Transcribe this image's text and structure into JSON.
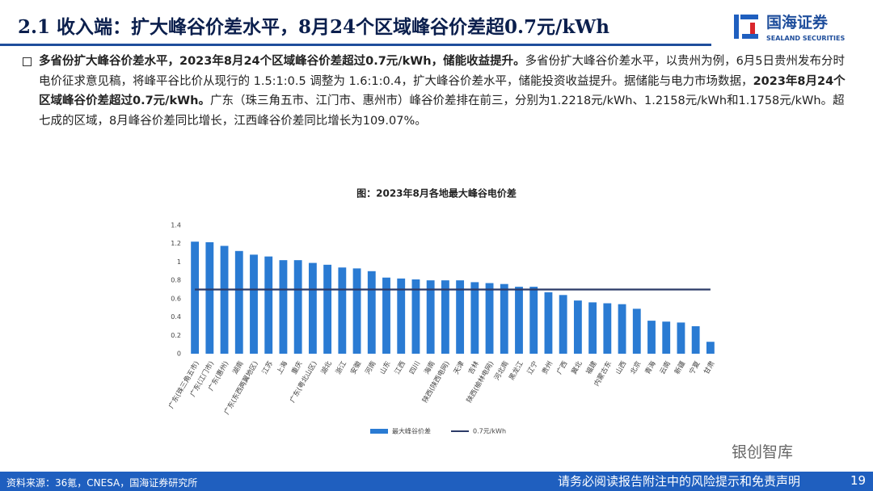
{
  "header": {
    "title": "2.1 收入端：扩大峰谷价差水平，8月24个区域峰谷价差超0.7元/kWh",
    "logo_text": "国海证券",
    "logo_subtext": "SEALAND SECURITIES"
  },
  "paragraph": {
    "segments": [
      {
        "text": "多省份扩大峰谷价差水平，2023年8月24个区域峰谷价差超过0.7元/kWh，储能收益提升。",
        "bold": true
      },
      {
        "text": "多省份扩大峰谷价差水平，以贵州为例，6月5日贵州发布分时电价征求意见稿，将峰平谷比价从现行的 1.5:1:0.5 调整为 1.6:1:0.4，扩大峰谷价差水平，储能投资收益提升。据储能与电力市场数据，",
        "bold": false
      },
      {
        "text": "2023年8月24个区域峰谷价差超过0.7元/kWh。",
        "bold": true
      },
      {
        "text": "广东（珠三角五市、江门市、惠州市）峰谷价差排在前三，分别为1.2218元/kWh、1.2158元/kWh和1.1758元/kWh。超七成的区域，8月峰谷价差同比增长，江西峰谷价差同比增长为109.07%。",
        "bold": false
      }
    ]
  },
  "chart_data": {
    "type": "bar",
    "title": "图：2023年8月各地最大峰谷电价差",
    "categories": [
      "广东(珠三角五市)",
      "广东(江门市)",
      "广东(惠州)",
      "湖南",
      "广东(东西两翼地区)",
      "江苏",
      "上海",
      "重庆",
      "广东(粤北山区)",
      "湖北",
      "浙江",
      "安徽",
      "河南",
      "山东",
      "江西",
      "四川",
      "海南",
      "陕西(陕西电网)",
      "天津",
      "吉林",
      "陕西(榆林电网)",
      "河北南",
      "黑龙江",
      "辽宁",
      "贵州",
      "广西",
      "冀北",
      "福建",
      "内蒙古东",
      "山西",
      "北京",
      "青海",
      "云南",
      "新疆",
      "宁夏",
      "甘肃"
    ],
    "series": [
      {
        "name": "最大峰谷价差",
        "type": "bar",
        "color": "#2a7bd3",
        "values": [
          1.2218,
          1.2158,
          1.1758,
          1.12,
          1.08,
          1.06,
          1.02,
          1.02,
          0.99,
          0.97,
          0.94,
          0.93,
          0.9,
          0.83,
          0.82,
          0.81,
          0.8,
          0.8,
          0.8,
          0.78,
          0.77,
          0.76,
          0.73,
          0.73,
          0.67,
          0.64,
          0.58,
          0.56,
          0.55,
          0.54,
          0.49,
          0.36,
          0.35,
          0.34,
          0.3,
          0.13
        ]
      },
      {
        "name": "0.7元/kWh",
        "type": "line",
        "color": "#2b3a67",
        "values": [
          0.7,
          0.7,
          0.7,
          0.7,
          0.7,
          0.7,
          0.7,
          0.7,
          0.7,
          0.7,
          0.7,
          0.7,
          0.7,
          0.7,
          0.7,
          0.7,
          0.7,
          0.7,
          0.7,
          0.7,
          0.7,
          0.7,
          0.7,
          0.7,
          0.7,
          0.7,
          0.7,
          0.7,
          0.7,
          0.7,
          0.7,
          0.7,
          0.7,
          0.7,
          0.7,
          0.7
        ]
      }
    ],
    "ylim": [
      0,
      1.4
    ],
    "yticks": [
      0,
      0.2,
      0.4,
      0.6,
      0.8,
      1,
      1.2,
      1.4
    ],
    "grid": false,
    "legend": "bottom"
  },
  "footer": {
    "source": "资料来源：36氪，CNESA，国海证券研究所",
    "disclaimer": "请务必阅读报告附注中的风险提示和免责声明",
    "page": "19",
    "watermark": "银创智库"
  }
}
